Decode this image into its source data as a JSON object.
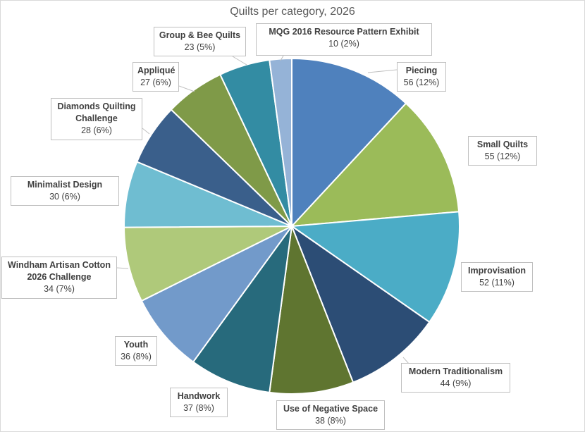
{
  "chart_data": {
    "type": "pie",
    "title": "Quilts per category, 2026",
    "start_angle": "12 o'clock, clockwise",
    "legend": "none (data labels)",
    "slices": [
      {
        "label": "Piecing",
        "value": 56,
        "percent": "12%",
        "color": "#4F81BD"
      },
      {
        "label": "Small Quilts",
        "value": 55,
        "percent": "12%",
        "color": "#9BBB59"
      },
      {
        "label": "Improvisation",
        "value": 52,
        "percent": "11%",
        "color": "#4BACC6"
      },
      {
        "label": "Modern Traditionalism",
        "value": 44,
        "percent": "9%",
        "color": "#2C4D75"
      },
      {
        "label": "Use of Negative Space",
        "value": 38,
        "percent": "8%",
        "color": "#5F7530"
      },
      {
        "label": "Handwork",
        "value": 37,
        "percent": "8%",
        "color": "#276A7C"
      },
      {
        "label": "Youth",
        "value": 36,
        "percent": "8%",
        "color": "#729ACA"
      },
      {
        "label": "Windham Artisan Cotton 2026 Challenge",
        "value": 34,
        "percent": "7%",
        "color": "#AFC97A"
      },
      {
        "label": "Minimalist Design",
        "value": 30,
        "percent": "6%",
        "color": "#6FBDD1"
      },
      {
        "label": "Diamonds Quilting Challenge",
        "value": 28,
        "percent": "6%",
        "color": "#3A5F8B"
      },
      {
        "label": "Appliqué",
        "value": 27,
        "percent": "6%",
        "color": "#7F9A48"
      },
      {
        "label": "Group & Bee Quilts",
        "value": 23,
        "percent": "5%",
        "color": "#338CA3"
      },
      {
        "label": "MQG 2016 Resource Pattern Exhibit",
        "value": 10,
        "percent": "2%",
        "color": "#95B3D7"
      }
    ]
  }
}
